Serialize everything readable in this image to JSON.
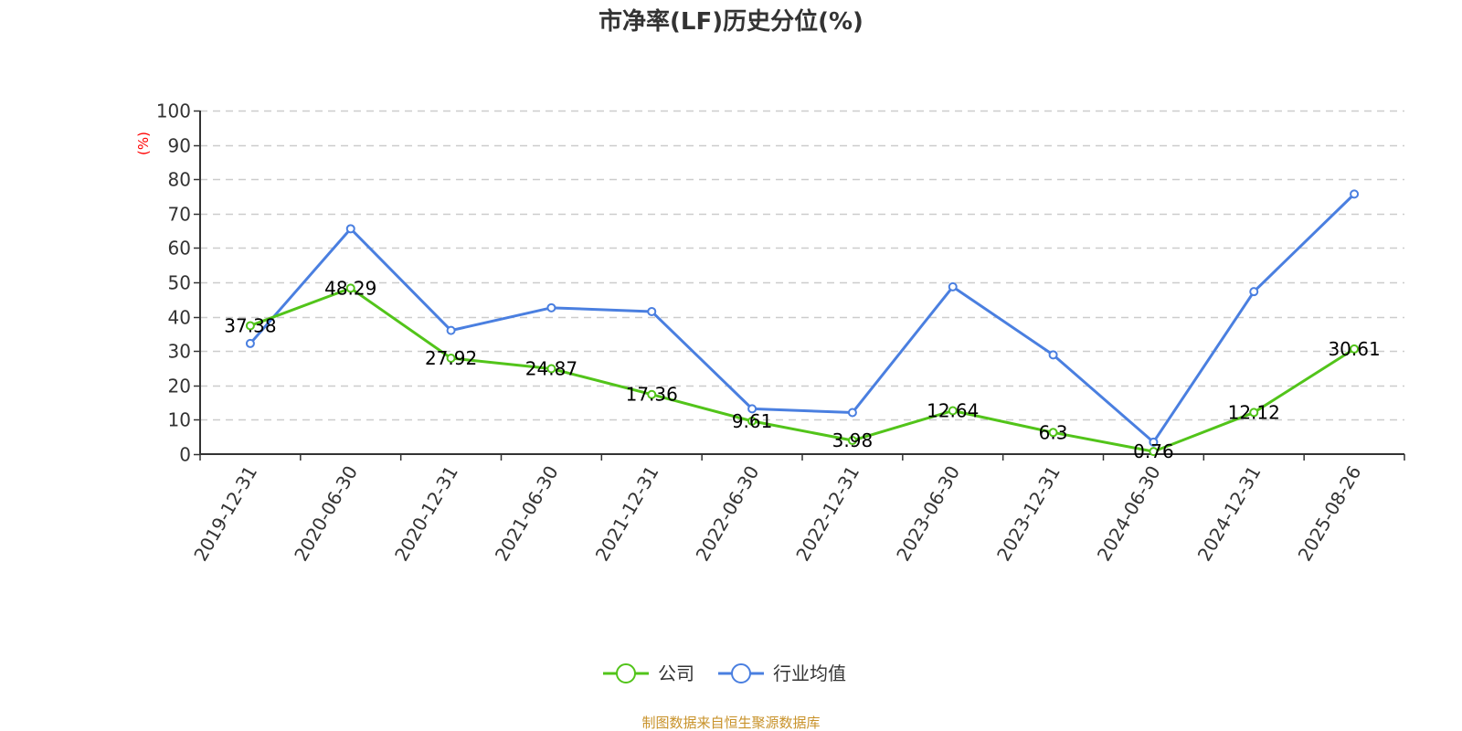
{
  "chart_data": {
    "type": "line",
    "title": "市净率(LF)历史分位(%)",
    "ylabel": "(%)",
    "xlabel": "",
    "ylim": [
      0,
      100
    ],
    "yticks": [
      0,
      10,
      20,
      30,
      40,
      50,
      60,
      70,
      80,
      90,
      100
    ],
    "grid": true,
    "legend_position": "bottom",
    "categories": [
      "2019-12-31",
      "2020-06-30",
      "2020-12-31",
      "2021-06-30",
      "2021-12-31",
      "2022-06-30",
      "2022-12-31",
      "2023-06-30",
      "2023-12-31",
      "2024-06-30",
      "2024-12-31",
      "2025-08-26"
    ],
    "series": [
      {
        "name": "公司",
        "color": "#52c41a",
        "show_labels": true,
        "values": [
          37.38,
          48.29,
          27.92,
          24.87,
          17.36,
          9.61,
          3.98,
          12.64,
          6.3,
          0.76,
          12.12,
          30.61
        ]
      },
      {
        "name": "行业均值",
        "color": "#4a7fe0",
        "show_labels": false,
        "values": [
          32.2,
          65.6,
          36.0,
          42.6,
          41.5,
          13.2,
          12.1,
          48.7,
          28.9,
          3.5,
          47.3,
          75.7
        ]
      }
    ]
  },
  "footer": {
    "source": "制图数据来自恒生聚源数据库"
  }
}
